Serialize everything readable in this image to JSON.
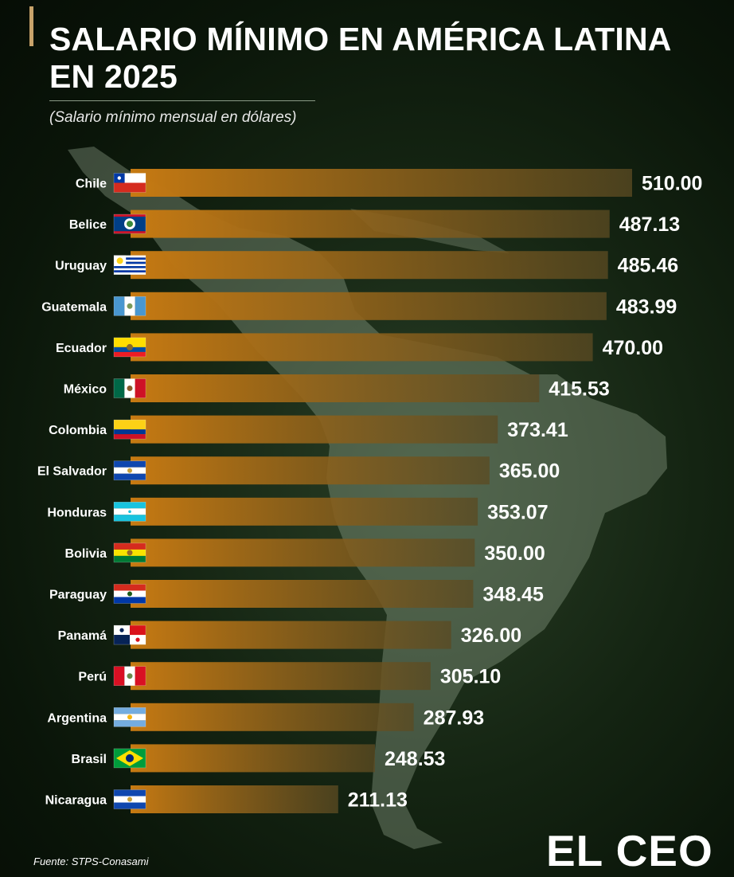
{
  "header": {
    "title": "SALARIO MÍNIMO EN AMÉRICA LATINA EN 2025",
    "subtitle": "(Salario mínimo mensual en dólares)"
  },
  "footer": {
    "source": "Fuente: STPS-Conasami",
    "logo_text": "EL CEO"
  },
  "colors": {
    "bar_start": "#c77a12",
    "bar_end": "#5a4a22",
    "accent": "#c8a36a",
    "text": "#ffffff"
  },
  "chart_data": {
    "type": "bar",
    "orientation": "horizontal",
    "categories": [
      "Chile",
      "Belice",
      "Uruguay",
      "Guatemala",
      "Ecuador",
      "México",
      "Colombia",
      "El Salvador",
      "Honduras",
      "Bolivia",
      "Paraguay",
      "Panamá",
      "Perú",
      "Argentina",
      "Brasil",
      "Nicaragua"
    ],
    "values": [
      510.0,
      487.13,
      485.46,
      483.99,
      470.0,
      415.53,
      373.41,
      365.0,
      353.07,
      350.0,
      348.45,
      326.0,
      305.1,
      287.93,
      248.53,
      211.13
    ],
    "value_labels": [
      "510.00",
      "487.13",
      "485.46",
      "483.99",
      "470.00",
      "415.53",
      "373.41",
      "365.00",
      "353.07",
      "350.00",
      "348.45",
      "326.00",
      "305.10",
      "287.93",
      "248.53",
      "211.13"
    ],
    "flag_icons": [
      "flag-chile-icon",
      "flag-belize-icon",
      "flag-uruguay-icon",
      "flag-guatemala-icon",
      "flag-ecuador-icon",
      "flag-mexico-icon",
      "flag-colombia-icon",
      "flag-el-salvador-icon",
      "flag-honduras-icon",
      "flag-bolivia-icon",
      "flag-paraguay-icon",
      "flag-panama-icon",
      "flag-peru-icon",
      "flag-argentina-icon",
      "flag-brazil-icon",
      "flag-nicaragua-icon"
    ],
    "xlim": [
      0,
      510
    ],
    "grid": false,
    "legend": "none"
  }
}
